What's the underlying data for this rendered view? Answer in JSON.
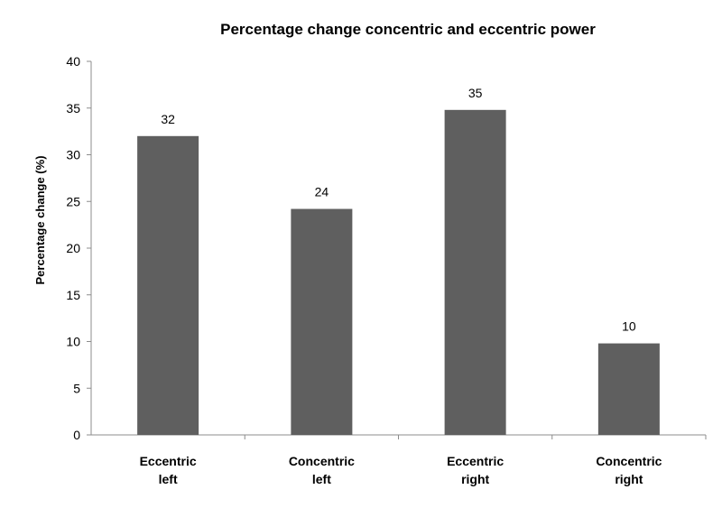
{
  "chart_data": {
    "type": "bar",
    "title": "Percentage change concentric and eccentric power",
    "xlabel": "",
    "ylabel": "Percentage change (%)",
    "ylim": [
      0,
      40
    ],
    "yticks": [
      0,
      5,
      10,
      15,
      20,
      25,
      30,
      35,
      40
    ],
    "categories": [
      [
        "Eccentric",
        "left"
      ],
      [
        "Concentric",
        "left"
      ],
      [
        "Eccentric",
        "right"
      ],
      [
        "Concentric",
        "right"
      ]
    ],
    "values": [
      32,
      24.2,
      34.8,
      9.8
    ],
    "data_labels": [
      "32",
      "24",
      "35",
      "10"
    ],
    "bar_color": "#5f5f5f",
    "axis_color": "#8c8c8c",
    "grid": false
  }
}
